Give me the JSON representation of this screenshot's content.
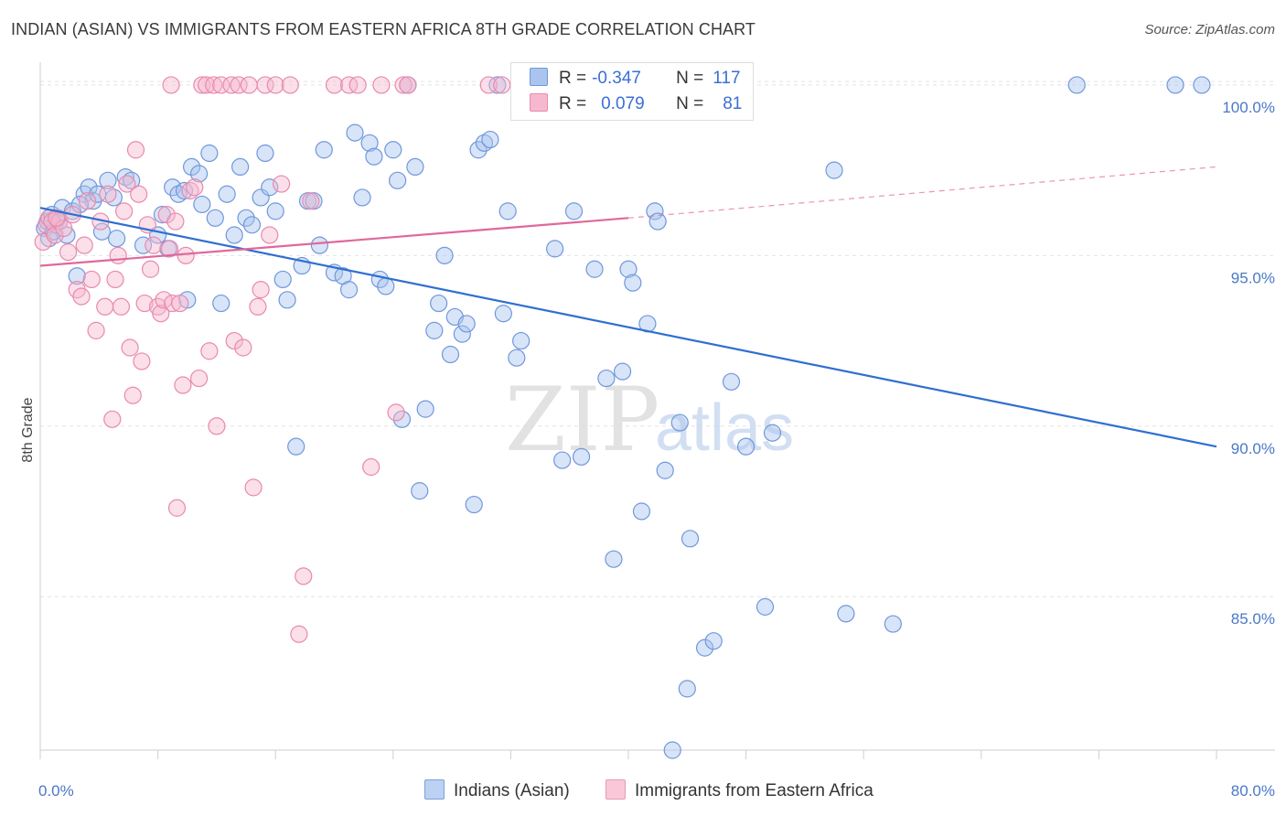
{
  "header": {
    "title": "INDIAN (ASIAN) VS IMMIGRANTS FROM EASTERN AFRICA 8TH GRADE CORRELATION CHART",
    "source": "Source: ZipAtlas.com"
  },
  "watermark": {
    "zip": "ZIP",
    "atlas": "atlas"
  },
  "legend": {
    "rows": [
      {
        "r_label": "R =",
        "r_value": "-0.347",
        "n_label": "N =",
        "n_value": "117"
      },
      {
        "r_label": "R =",
        "r_value": "0.079",
        "n_label": "N =",
        "n_value": "81"
      }
    ]
  },
  "bottom_legend": {
    "items": [
      {
        "label": "Indians (Asian)"
      },
      {
        "label": "Immigrants from Eastern Africa"
      }
    ]
  },
  "colors": {
    "blue_fill": "#a9c4ee",
    "blue_stroke": "#6f98dc",
    "blue_line": "#2f6fd0",
    "pink_fill": "#f6b8cf",
    "pink_stroke": "#e88aae",
    "pink_line": "#e0689a",
    "grid": "#e3e3e3",
    "tick_text": "#4a78c8"
  },
  "chart_data": {
    "type": "scatter",
    "title": "INDIAN (ASIAN) VS IMMIGRANTS FROM EASTERN AFRICA 8TH GRADE CORRELATION CHART",
    "xlabel": "",
    "ylabel": "8th Grade",
    "xlim": [
      0,
      80
    ],
    "ylim": [
      80.5,
      100.4
    ],
    "x_tick_labels": [
      {
        "value": 0,
        "label": "0.0%"
      },
      {
        "value": 80,
        "label": "80.0%"
      }
    ],
    "y_tick_labels": [
      {
        "value": 100,
        "label": "100.0%"
      },
      {
        "value": 95,
        "label": "95.0%"
      },
      {
        "value": 90,
        "label": "90.0%"
      },
      {
        "value": 85,
        "label": "85.0%"
      }
    ],
    "x_minor_ticks": [
      0,
      8,
      16,
      24,
      32,
      40,
      48,
      56,
      64,
      72,
      80
    ],
    "series": [
      {
        "name": "Indians (Asian)",
        "color_key": "blue",
        "r": -0.347,
        "n": 117,
        "trend": {
          "x0": 0,
          "y0": 96.4,
          "x1": 80,
          "y1": 89.4
        },
        "points": [
          [
            0.3,
            95.8
          ],
          [
            0.5,
            96.0
          ],
          [
            0.6,
            95.5
          ],
          [
            0.8,
            96.2
          ],
          [
            1.0,
            95.9
          ],
          [
            1.2,
            96.1
          ],
          [
            1.5,
            96.4
          ],
          [
            1.8,
            95.6
          ],
          [
            2.2,
            96.3
          ],
          [
            2.5,
            94.4
          ],
          [
            3.0,
            96.8
          ],
          [
            3.3,
            97.0
          ],
          [
            3.6,
            96.6
          ],
          [
            3.9,
            96.8
          ],
          [
            4.2,
            95.7
          ],
          [
            4.6,
            97.2
          ],
          [
            5.0,
            96.7
          ],
          [
            5.2,
            95.5
          ],
          [
            5.8,
            97.3
          ],
          [
            6.2,
            97.2
          ],
          [
            7.0,
            95.3
          ],
          [
            8.0,
            95.6
          ],
          [
            8.3,
            96.2
          ],
          [
            8.7,
            95.2
          ],
          [
            9.0,
            97.0
          ],
          [
            9.4,
            96.8
          ],
          [
            9.8,
            96.9
          ],
          [
            10.0,
            93.7
          ],
          [
            10.3,
            97.6
          ],
          [
            10.8,
            97.4
          ],
          [
            11.0,
            96.5
          ],
          [
            11.5,
            98.0
          ],
          [
            11.9,
            96.1
          ],
          [
            12.3,
            93.6
          ],
          [
            12.7,
            96.8
          ],
          [
            13.2,
            95.6
          ],
          [
            13.6,
            97.6
          ],
          [
            14.0,
            96.1
          ],
          [
            14.4,
            95.9
          ],
          [
            15.0,
            96.7
          ],
          [
            15.3,
            98.0
          ],
          [
            15.6,
            97.0
          ],
          [
            16.0,
            96.3
          ],
          [
            16.5,
            94.3
          ],
          [
            16.8,
            93.7
          ],
          [
            17.4,
            89.4
          ],
          [
            17.8,
            94.7
          ],
          [
            18.2,
            96.6
          ],
          [
            18.6,
            96.6
          ],
          [
            19.0,
            95.3
          ],
          [
            19.3,
            98.1
          ],
          [
            20.0,
            94.5
          ],
          [
            20.6,
            94.4
          ],
          [
            21.0,
            94.0
          ],
          [
            21.4,
            98.6
          ],
          [
            21.9,
            96.7
          ],
          [
            22.4,
            98.3
          ],
          [
            22.7,
            97.9
          ],
          [
            23.1,
            94.3
          ],
          [
            23.5,
            94.1
          ],
          [
            24.0,
            98.1
          ],
          [
            24.3,
            97.2
          ],
          [
            24.6,
            90.2
          ],
          [
            25.0,
            100.0
          ],
          [
            25.5,
            97.6
          ],
          [
            25.8,
            88.1
          ],
          [
            26.2,
            90.5
          ],
          [
            26.8,
            92.8
          ],
          [
            27.1,
            93.6
          ],
          [
            27.5,
            95.0
          ],
          [
            27.9,
            92.1
          ],
          [
            28.2,
            93.2
          ],
          [
            28.7,
            92.7
          ],
          [
            29.0,
            93.0
          ],
          [
            29.5,
            87.7
          ],
          [
            29.8,
            98.1
          ],
          [
            30.2,
            98.3
          ],
          [
            30.6,
            98.4
          ],
          [
            31.1,
            100.0
          ],
          [
            31.5,
            93.3
          ],
          [
            31.8,
            96.3
          ],
          [
            32.4,
            92.0
          ],
          [
            32.7,
            92.5
          ],
          [
            35.0,
            95.2
          ],
          [
            35.5,
            89.0
          ],
          [
            36.8,
            89.1
          ],
          [
            36.3,
            96.3
          ],
          [
            37.7,
            94.6
          ],
          [
            38.5,
            91.4
          ],
          [
            39.0,
            86.1
          ],
          [
            39.6,
            91.6
          ],
          [
            40.0,
            94.6
          ],
          [
            40.3,
            94.2
          ],
          [
            40.9,
            87.5
          ],
          [
            41.3,
            93.0
          ],
          [
            41.8,
            96.3
          ],
          [
            42.0,
            96.0
          ],
          [
            42.5,
            88.7
          ],
          [
            43.0,
            80.5
          ],
          [
            43.5,
            90.1
          ],
          [
            44.2,
            86.7
          ],
          [
            44.0,
            82.3
          ],
          [
            45.2,
            83.5
          ],
          [
            45.8,
            83.7
          ],
          [
            47.0,
            91.3
          ],
          [
            48.0,
            89.4
          ],
          [
            49.3,
            84.7
          ],
          [
            49.8,
            89.8
          ],
          [
            54.0,
            97.5
          ],
          [
            54.8,
            84.5
          ],
          [
            58.0,
            84.2
          ],
          [
            70.5,
            100.0
          ],
          [
            77.2,
            100.0
          ],
          [
            79.0,
            100.0
          ],
          [
            0.9,
            95.7
          ],
          [
            1.3,
            96.0
          ],
          [
            2.7,
            96.5
          ]
        ]
      },
      {
        "name": "Immigrants from Eastern Africa",
        "color_key": "pink",
        "r": 0.079,
        "n": 81,
        "trend": {
          "x0": 0,
          "y0": 94.7,
          "x1": 40,
          "y1": 96.1
        },
        "trend_dashed": {
          "x0": 40,
          "y0": 96.1,
          "x1": 80,
          "y1": 97.6
        },
        "points": [
          [
            0.2,
            95.4
          ],
          [
            0.4,
            95.9
          ],
          [
            0.6,
            96.1
          ],
          [
            0.8,
            96.0
          ],
          [
            1.0,
            95.6
          ],
          [
            1.3,
            96.0
          ],
          [
            1.6,
            95.8
          ],
          [
            1.9,
            95.1
          ],
          [
            2.2,
            96.2
          ],
          [
            2.5,
            94.0
          ],
          [
            2.8,
            93.8
          ],
          [
            3.0,
            95.3
          ],
          [
            3.2,
            96.6
          ],
          [
            3.5,
            94.3
          ],
          [
            3.8,
            92.8
          ],
          [
            4.1,
            96.0
          ],
          [
            4.4,
            93.5
          ],
          [
            4.6,
            96.8
          ],
          [
            4.9,
            90.2
          ],
          [
            5.1,
            94.3
          ],
          [
            5.3,
            95.0
          ],
          [
            5.5,
            93.5
          ],
          [
            5.7,
            96.3
          ],
          [
            5.9,
            97.1
          ],
          [
            6.1,
            92.3
          ],
          [
            6.3,
            90.9
          ],
          [
            6.5,
            98.1
          ],
          [
            6.7,
            96.8
          ],
          [
            6.9,
            91.9
          ],
          [
            7.1,
            93.6
          ],
          [
            7.3,
            95.9
          ],
          [
            7.5,
            94.6
          ],
          [
            7.7,
            95.3
          ],
          [
            8.0,
            93.5
          ],
          [
            8.2,
            93.3
          ],
          [
            8.4,
            93.7
          ],
          [
            8.6,
            96.2
          ],
          [
            8.8,
            95.2
          ],
          [
            9.0,
            93.6
          ],
          [
            9.2,
            96.0
          ],
          [
            9.3,
            87.6
          ],
          [
            9.5,
            93.6
          ],
          [
            9.7,
            91.2
          ],
          [
            9.9,
            95.0
          ],
          [
            8.9,
            100.0
          ],
          [
            10.2,
            96.9
          ],
          [
            10.5,
            97.0
          ],
          [
            10.8,
            91.4
          ],
          [
            11.0,
            100.0
          ],
          [
            11.3,
            100.0
          ],
          [
            11.5,
            92.2
          ],
          [
            11.8,
            100.0
          ],
          [
            12.0,
            90.0
          ],
          [
            12.3,
            100.0
          ],
          [
            13.0,
            100.0
          ],
          [
            13.2,
            92.5
          ],
          [
            13.5,
            100.0
          ],
          [
            13.8,
            92.3
          ],
          [
            14.2,
            100.0
          ],
          [
            14.5,
            88.2
          ],
          [
            14.8,
            93.5
          ],
          [
            15.0,
            94.0
          ],
          [
            15.3,
            100.0
          ],
          [
            15.6,
            95.6
          ],
          [
            16.0,
            100.0
          ],
          [
            16.4,
            97.1
          ],
          [
            17.0,
            100.0
          ],
          [
            17.6,
            83.9
          ],
          [
            17.9,
            85.6
          ],
          [
            18.4,
            96.6
          ],
          [
            20.0,
            100.0
          ],
          [
            21.0,
            100.0
          ],
          [
            21.6,
            100.0
          ],
          [
            22.5,
            88.8
          ],
          [
            23.2,
            100.0
          ],
          [
            24.2,
            90.4
          ],
          [
            24.7,
            100.0
          ],
          [
            25.0,
            100.0
          ],
          [
            30.5,
            100.0
          ],
          [
            31.4,
            100.0
          ],
          [
            1.1,
            96.1
          ]
        ]
      }
    ]
  }
}
